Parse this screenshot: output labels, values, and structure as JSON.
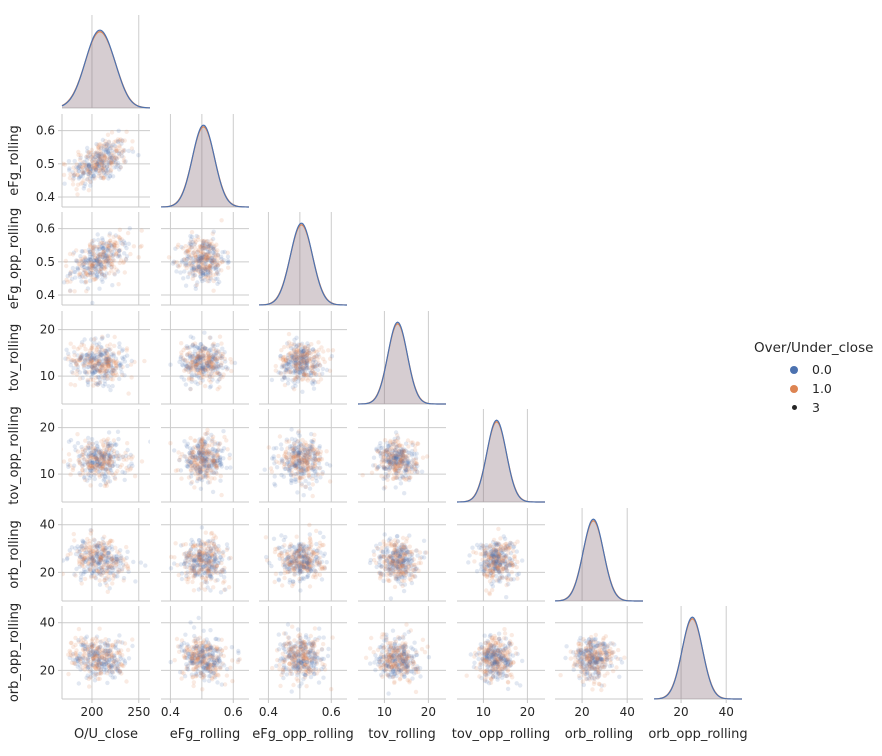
{
  "chart_data": {
    "type": "pairplot",
    "variables": [
      "O/U_close",
      "eFg_rolling",
      "eFg_opp_rolling",
      "tov_rolling",
      "tov_opp_rolling",
      "orb_rolling",
      "orb_opp_rolling"
    ],
    "hue": {
      "title": "Over/Under_close",
      "levels": [
        {
          "label": "0.0",
          "color": "#4c72b0"
        },
        {
          "label": "1.0",
          "color": "#dd8452"
        }
      ],
      "size_legend": {
        "label": "3",
        "color": "#262626"
      }
    },
    "corner": true,
    "diag_kind": "kde",
    "grid": true,
    "vars": [
      {
        "name": "O/U_close",
        "lim": [
          168,
          262
        ],
        "ticks": [
          200,
          250
        ],
        "mean": 208,
        "sd": 15
      },
      {
        "name": "eFg_rolling",
        "lim": [
          0.37,
          0.65
        ],
        "ticks": [
          0.4,
          0.5,
          0.6
        ],
        "ticks_bottom": [
          0.4,
          0.6
        ],
        "mean": 0.505,
        "sd": 0.035
      },
      {
        "name": "eFg_opp_rolling",
        "lim": [
          0.37,
          0.65
        ],
        "ticks": [
          0.4,
          0.5,
          0.6
        ],
        "ticks_bottom": [
          0.4,
          0.6
        ],
        "mean": 0.505,
        "sd": 0.035
      },
      {
        "name": "tov_rolling",
        "lim": [
          4,
          24
        ],
        "ticks": [
          10,
          20
        ],
        "mean": 13,
        "sd": 2.2
      },
      {
        "name": "tov_opp_rolling",
        "lim": [
          4,
          24
        ],
        "ticks": [
          10,
          20
        ],
        "mean": 13,
        "sd": 2.2
      },
      {
        "name": "orb_rolling",
        "lim": [
          8,
          47
        ],
        "ticks": [
          20,
          40
        ],
        "mean": 25,
        "sd": 4.5
      },
      {
        "name": "orb_opp_rolling",
        "lim": [
          8,
          47
        ],
        "ticks": [
          20,
          40
        ],
        "mean": 25,
        "sd": 4.5
      }
    ],
    "correlation": {
      "O/U_close|eFg_rolling": 0.45,
      "O/U_close|eFg_opp_rolling": 0.45,
      "O/U_close|tov_rolling": -0.1,
      "O/U_close|tov_opp_rolling": -0.1,
      "O/U_close|orb_rolling": -0.25,
      "O/U_close|orb_opp_rolling": -0.15
    }
  }
}
